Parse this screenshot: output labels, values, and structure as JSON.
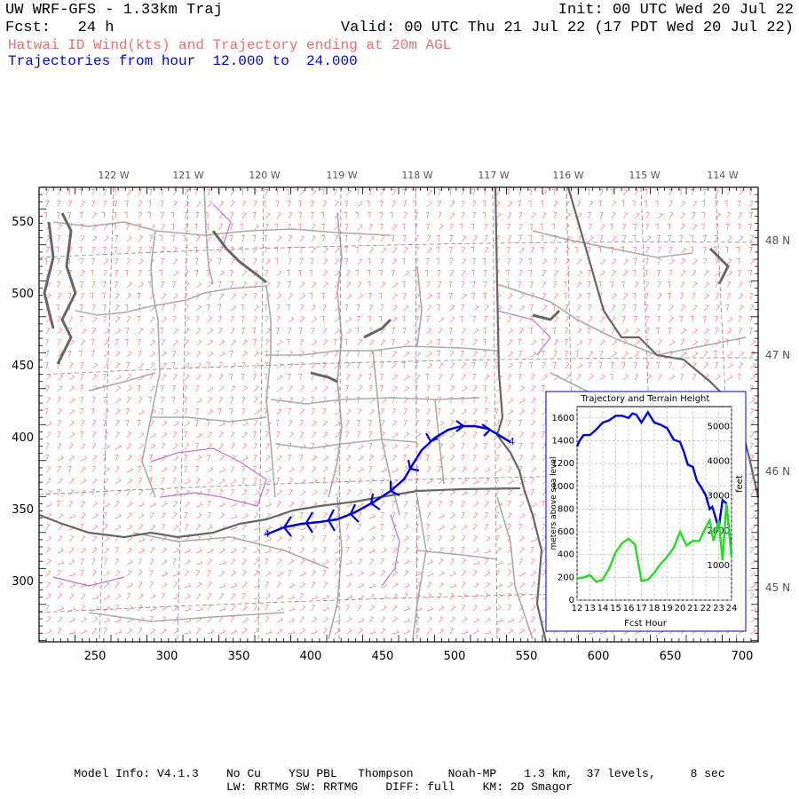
{
  "header": {
    "title": "UW WRF-GFS - 1.33km Traj",
    "fcst": "Fcst:   24 h",
    "init": "Init: 00 UTC Wed 20 Jul 22",
    "valid": "Valid: 00 UTC Thu 21 Jul 22 (17 PDT Wed 20 Jul 22)",
    "wind_line": "Hatwai ID Wind(kts) and Trajectory ending at 20m AGL",
    "traj_line": "Trajectories from hour  12.000 to  24.000"
  },
  "map": {
    "lon_labels": [
      "122 W",
      "121 W",
      "120 W",
      "119 W",
      "118 W",
      "117 W",
      "116 W",
      "115 W",
      "114 W"
    ],
    "lat_labels": [
      "48 N",
      "47 N",
      "46 N",
      "45 N"
    ],
    "x_ticks": [
      "250",
      "300",
      "350",
      "400",
      "450",
      "500",
      "550",
      "600",
      "650",
      "700"
    ],
    "y_ticks": [
      "550",
      "500",
      "450",
      "400",
      "350",
      "300"
    ],
    "trajectory_markers": [
      "4",
      "4"
    ],
    "colors": {
      "wind_barbs": "#f07a7a",
      "trajectory": "#0000dd",
      "state_border": "#666666",
      "county_border": "#aaaaaa",
      "water": "#c070d0"
    }
  },
  "inset": {
    "title": "Trajectory and Terrain Height",
    "xlabel": "Fcst Hour",
    "ylabel_left": "meters above sea level",
    "ylabel_right": "feet",
    "x_ticks": [
      "12",
      "13",
      "14",
      "15",
      "16",
      "17",
      "18",
      "19",
      "20",
      "21",
      "22",
      "23",
      "24"
    ],
    "y_ticks_left": [
      "0",
      "200",
      "400",
      "600",
      "800",
      "1000",
      "1200",
      "1400",
      "1600"
    ],
    "y_ticks_right": [
      "1000",
      "2000",
      "3000",
      "4000",
      "5000"
    ],
    "colors": {
      "trajectory": "#0000dd",
      "terrain": "#22dd22",
      "frame": "#0000cc"
    }
  },
  "chart_data": {
    "type": "line",
    "title": "Trajectory and Terrain Height",
    "xlabel": "Fcst Hour",
    "ylabel": "meters above sea level",
    "xlim": [
      12,
      24
    ],
    "ylim": [
      0,
      1700
    ],
    "series": [
      {
        "name": "",
        "color": "#0000dd",
        "x": [
          12,
          12.2,
          12.5,
          13,
          13.5,
          14,
          14.5,
          15,
          15.5,
          16,
          16.3,
          16.6,
          17,
          17.5,
          18,
          18.5,
          19,
          19.5,
          20,
          20.3,
          20.6,
          21,
          21.3,
          21.6,
          22,
          22.3,
          22.5,
          22.7,
          23,
          23.3,
          23.6,
          24
        ],
        "values": [
          1350,
          1400,
          1450,
          1450,
          1500,
          1560,
          1580,
          1620,
          1620,
          1600,
          1640,
          1630,
          1560,
          1650,
          1560,
          1540,
          1510,
          1410,
          1390,
          1300,
          1190,
          1170,
          1050,
          1000,
          920,
          800,
          820,
          750,
          630,
          880,
          850,
          400
        ]
      },
      {
        "name": "",
        "color": "#22dd22",
        "x": [
          12,
          12.5,
          13,
          13.5,
          14,
          14.5,
          15,
          15.5,
          16,
          16.5,
          17,
          17.5,
          18,
          18.5,
          19,
          19.5,
          20,
          20.5,
          21,
          21.5,
          22,
          22.3,
          22.6,
          23,
          23.3,
          23.6,
          24
        ],
        "values": [
          190,
          200,
          220,
          160,
          180,
          280,
          420,
          500,
          540,
          490,
          170,
          180,
          240,
          320,
          380,
          460,
          600,
          480,
          520,
          520,
          640,
          700,
          520,
          700,
          350,
          850,
          380
        ]
      }
    ]
  }
}
